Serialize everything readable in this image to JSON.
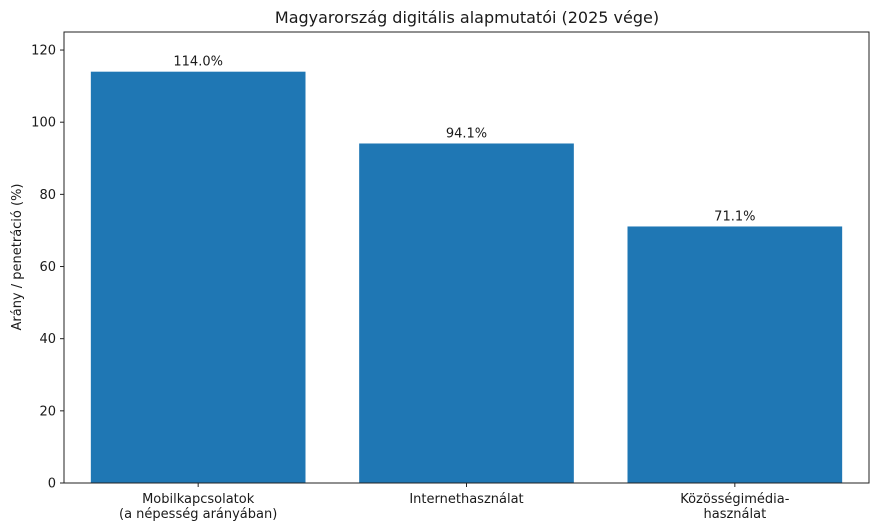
{
  "chart_data": {
    "type": "bar",
    "title": "Magyarország digitális alapmutatói (2025 vége)",
    "xlabel": "",
    "ylabel": "Arány / penetráció (%)",
    "ylim": [
      0,
      125
    ],
    "yticks": [
      0,
      20,
      40,
      60,
      80,
      100,
      120
    ],
    "categories": [
      [
        "Mobilkapcsolatok",
        "(a népesség arányában)"
      ],
      [
        "Internethasználat"
      ],
      [
        "Közösségimédia-",
        "használat"
      ]
    ],
    "values": [
      114.0,
      94.1,
      71.1
    ],
    "value_labels": [
      "114.0%",
      "94.1%",
      "71.1%"
    ],
    "bar_color": "#1f77b4",
    "grid": false,
    "legend": "none"
  }
}
